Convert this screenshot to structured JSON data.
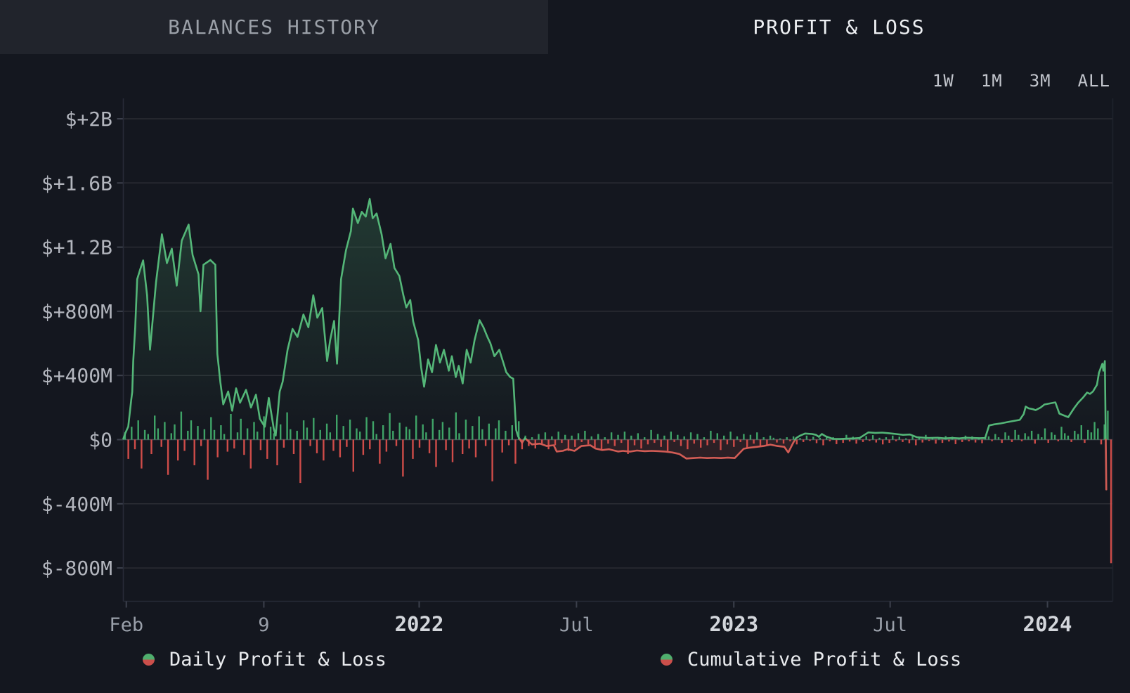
{
  "tabs": {
    "balances_label": "BALANCES HISTORY",
    "profit_loss_label": "PROFIT & LOSS",
    "active": "PROFIT & LOSS"
  },
  "range_selector": {
    "options": [
      "1W",
      "1M",
      "3M",
      "ALL"
    ]
  },
  "legend": {
    "items": [
      {
        "label": "Daily Profit & Loss"
      },
      {
        "label": "Cumulative Profit & Loss"
      }
    ]
  },
  "colors": {
    "background": "#14171f",
    "panel": "#21242c",
    "grid": "#2b2d34",
    "zero_line": "#474b55",
    "axis": "#272b37",
    "tick": "#3c404c",
    "right_border": "#1f222c",
    "line_green": "#54b678",
    "line_red": "#d25c55",
    "bar_green": "#3fa367",
    "bar_red": "#cf4c49",
    "area_green": "rgba(84,182,120,0.22)",
    "area_red": "rgba(210,92,85,0.13)",
    "text_active": "#edeff2",
    "text_inactive": "#9ba0a8",
    "text_axis": "#b3b6be",
    "text_month": "#9aa0aa",
    "text_year": "#d3d6db",
    "legend_text": "#e9ebee"
  },
  "chart_data": {
    "type": "combo",
    "title": "Profit & Loss",
    "unit": "USD millions",
    "y_axis": {
      "min": -1050,
      "max": 2250,
      "grid": true,
      "ticks": [
        {
          "label": "$+2B",
          "value": 2000
        },
        {
          "label": "$+1.6B",
          "value": 1600
        },
        {
          "label": "$+1.2B",
          "value": 1200
        },
        {
          "label": "$+800M",
          "value": 800
        },
        {
          "label": "$+400M",
          "value": 400
        },
        {
          "label": "$0",
          "value": 0
        },
        {
          "label": "$-400M",
          "value": -400
        },
        {
          "label": "$-800M",
          "value": -800
        }
      ]
    },
    "x_axis": {
      "ticks": [
        {
          "label": "Feb",
          "t": 0.003,
          "bold": false
        },
        {
          "label": "9",
          "t": 0.142,
          "bold": false
        },
        {
          "label": "2022",
          "t": 0.299,
          "bold": true
        },
        {
          "label": "Jul",
          "t": 0.458,
          "bold": false
        },
        {
          "label": "2023",
          "t": 0.617,
          "bold": true
        },
        {
          "label": "Jul",
          "t": 0.775,
          "bold": false
        },
        {
          "label": "2024",
          "t": 0.934,
          "bold": true
        }
      ]
    },
    "series": [
      {
        "name": "Daily Profit & Loss",
        "type": "bar",
        "values": [
          45,
          -120,
          80,
          -60,
          120,
          -180,
          60,
          35,
          -90,
          150,
          70,
          -45,
          110,
          -220,
          40,
          95,
          -130,
          175,
          -70,
          55,
          120,
          -160,
          85,
          -40,
          65,
          -250,
          140,
          60,
          -110,
          90,
          35,
          -75,
          160,
          -55,
          45,
          130,
          -95,
          70,
          -180,
          110,
          50,
          -65,
          145,
          -120,
          80,
          40,
          -160,
          95,
          -50,
          170,
          65,
          -90,
          55,
          -270,
          120,
          75,
          -40,
          135,
          -85,
          60,
          -130,
          100,
          45,
          -70,
          155,
          -110,
          85,
          -45,
          125,
          -200,
          70,
          50,
          -95,
          140,
          -60,
          115,
          35,
          -150,
          90,
          -75,
          165,
          55,
          -40,
          105,
          -230,
          80,
          65,
          -120,
          150,
          -50,
          95,
          45,
          -85,
          130,
          -170,
          60,
          110,
          -65,
          75,
          -140,
          170,
          40,
          -90,
          125,
          -55,
          85,
          -110,
          145,
          65,
          -40,
          100,
          -260,
          70,
          120,
          -80,
          55,
          -35,
          90,
          -150,
          115,
          -60,
          25,
          -40,
          15,
          -55,
          35,
          -25,
          45,
          -60,
          20,
          -35,
          50,
          -20,
          30,
          -70,
          25,
          -45,
          40,
          -15,
          55,
          -30,
          20,
          -50,
          35,
          -65,
          15,
          -25,
          45,
          -40,
          30,
          -20,
          50,
          -90,
          25,
          -35,
          40,
          -55,
          15,
          -30,
          60,
          -20,
          35,
          -45,
          25,
          -70,
          50,
          -15,
          30,
          -40,
          20,
          -60,
          45,
          -25,
          35,
          -50,
          15,
          -35,
          55,
          -20,
          40,
          -65,
          25,
          -30,
          50,
          -45,
          20,
          -15,
          35,
          -55,
          30,
          -25,
          45,
          -40,
          15,
          -35,
          25,
          12,
          -18,
          8,
          -25,
          15,
          -10,
          20,
          -30,
          10,
          -15,
          25,
          -8,
          18,
          -22,
          12,
          -35,
          20,
          -10,
          15,
          -28,
          8,
          -20,
          30,
          -12,
          18,
          -25,
          10,
          -15,
          22,
          -8,
          28,
          -18,
          12,
          -30,
          15,
          -20,
          25,
          -10,
          18,
          -15,
          8,
          -22,
          20,
          -35,
          12,
          -18,
          30,
          -8,
          15,
          -25,
          10,
          -20,
          22,
          -12,
          18,
          -28,
          8,
          -15,
          25,
          -10,
          20,
          -18,
          12,
          -22,
          15,
          20,
          -10,
          35,
          15,
          -20,
          45,
          25,
          -15,
          60,
          30,
          -10,
          40,
          20,
          55,
          -25,
          35,
          15,
          70,
          -20,
          45,
          30,
          -10,
          80,
          40,
          25,
          -15,
          55,
          35,
          90,
          -20,
          60,
          45,
          110,
          70,
          -30,
          95,
          180,
          -770
        ]
      },
      {
        "name": "Cumulative Profit & Loss",
        "type": "line",
        "points": [
          [
            0,
            5
          ],
          [
            0.002,
            40
          ],
          [
            0.005,
            81
          ],
          [
            0.008,
            250
          ],
          [
            0.009,
            298
          ],
          [
            0.01,
            490
          ],
          [
            0.012,
            700
          ],
          [
            0.014,
            1000
          ],
          [
            0.017,
            1060
          ],
          [
            0.02,
            1117
          ],
          [
            0.024,
            900
          ],
          [
            0.027,
            561
          ],
          [
            0.033,
            980
          ],
          [
            0.039,
            1280
          ],
          [
            0.044,
            1100
          ],
          [
            0.049,
            1190
          ],
          [
            0.054,
            960
          ],
          [
            0.059,
            1240
          ],
          [
            0.066,
            1340
          ],
          [
            0.07,
            1150
          ],
          [
            0.076,
            1030
          ],
          [
            0.078,
            800
          ],
          [
            0.081,
            1090
          ],
          [
            0.088,
            1120
          ],
          [
            0.093,
            1090
          ],
          [
            0.095,
            534
          ],
          [
            0.098,
            360
          ],
          [
            0.101,
            220
          ],
          [
            0.106,
            300
          ],
          [
            0.11,
            180
          ],
          [
            0.114,
            320
          ],
          [
            0.118,
            230
          ],
          [
            0.124,
            310
          ],
          [
            0.129,
            200
          ],
          [
            0.134,
            280
          ],
          [
            0.138,
            130
          ],
          [
            0.143,
            80
          ],
          [
            0.147,
            260
          ],
          [
            0.152,
            70
          ],
          [
            0.154,
            25
          ],
          [
            0.158,
            300
          ],
          [
            0.161,
            360
          ],
          [
            0.166,
            560
          ],
          [
            0.171,
            690
          ],
          [
            0.176,
            640
          ],
          [
            0.182,
            780
          ],
          [
            0.187,
            700
          ],
          [
            0.192,
            900
          ],
          [
            0.196,
            760
          ],
          [
            0.201,
            820
          ],
          [
            0.206,
            490
          ],
          [
            0.209,
            620
          ],
          [
            0.213,
            740
          ],
          [
            0.216,
            473
          ],
          [
            0.22,
            1000
          ],
          [
            0.225,
            1180
          ],
          [
            0.23,
            1300
          ],
          [
            0.232,
            1440
          ],
          [
            0.237,
            1350
          ],
          [
            0.241,
            1420
          ],
          [
            0.245,
            1390
          ],
          [
            0.249,
            1500
          ],
          [
            0.252,
            1380
          ],
          [
            0.256,
            1410
          ],
          [
            0.261,
            1280
          ],
          [
            0.265,
            1130
          ],
          [
            0.27,
            1220
          ],
          [
            0.274,
            1070
          ],
          [
            0.279,
            1020
          ],
          [
            0.283,
            900
          ],
          [
            0.286,
            824
          ],
          [
            0.29,
            870
          ],
          [
            0.293,
            736
          ],
          [
            0.298,
            620
          ],
          [
            0.301,
            450
          ],
          [
            0.304,
            330
          ],
          [
            0.308,
            500
          ],
          [
            0.312,
            420
          ],
          [
            0.316,
            590
          ],
          [
            0.32,
            480
          ],
          [
            0.324,
            560
          ],
          [
            0.329,
            430
          ],
          [
            0.332,
            520
          ],
          [
            0.336,
            390
          ],
          [
            0.339,
            460
          ],
          [
            0.343,
            350
          ],
          [
            0.347,
            560
          ],
          [
            0.351,
            480
          ],
          [
            0.355,
            620
          ],
          [
            0.36,
            745
          ],
          [
            0.364,
            700
          ],
          [
            0.368,
            640
          ],
          [
            0.371,
            600
          ],
          [
            0.375,
            520
          ],
          [
            0.38,
            560
          ],
          [
            0.384,
            480
          ],
          [
            0.387,
            420
          ],
          [
            0.391,
            390
          ],
          [
            0.394,
            380
          ],
          [
            0.397,
            60
          ],
          [
            0.399,
            20
          ],
          [
            0.403,
            -20
          ],
          [
            0.406,
            10
          ],
          [
            0.41,
            -15
          ],
          [
            0.413,
            -30
          ],
          [
            0.421,
            -25
          ],
          [
            0.428,
            -40
          ],
          [
            0.435,
            -35
          ],
          [
            0.438,
            -74
          ],
          [
            0.444,
            -70
          ],
          [
            0.449,
            -60
          ],
          [
            0.456,
            -70
          ],
          [
            0.463,
            -40
          ],
          [
            0.472,
            -35
          ],
          [
            0.477,
            -55
          ],
          [
            0.484,
            -65
          ],
          [
            0.491,
            -60
          ],
          [
            0.5,
            -74
          ],
          [
            0.505,
            -70
          ],
          [
            0.512,
            -75
          ],
          [
            0.519,
            -68
          ],
          [
            0.527,
            -72
          ],
          [
            0.534,
            -70
          ],
          [
            0.541,
            -72
          ],
          [
            0.548,
            -75
          ],
          [
            0.555,
            -80
          ],
          [
            0.562,
            -90
          ],
          [
            0.569,
            -118
          ],
          [
            0.576,
            -115
          ],
          [
            0.583,
            -112
          ],
          [
            0.59,
            -115
          ],
          [
            0.597,
            -113
          ],
          [
            0.604,
            -115
          ],
          [
            0.611,
            -112
          ],
          [
            0.618,
            -115
          ],
          [
            0.627,
            -57
          ],
          [
            0.633,
            -50
          ],
          [
            0.64,
            -45
          ],
          [
            0.647,
            -40
          ],
          [
            0.654,
            -31
          ],
          [
            0.661,
            -40
          ],
          [
            0.668,
            -45
          ],
          [
            0.672,
            -80
          ],
          [
            0.677,
            -20
          ],
          [
            0.68,
            10
          ],
          [
            0.684,
            25
          ],
          [
            0.689,
            38
          ],
          [
            0.696,
            35
          ],
          [
            0.7,
            30
          ],
          [
            0.703,
            17
          ],
          [
            0.706,
            35
          ],
          [
            0.71,
            20
          ],
          [
            0.717,
            5
          ],
          [
            0.724,
            4
          ],
          [
            0.732,
            6
          ],
          [
            0.739,
            8
          ],
          [
            0.744,
            10
          ],
          [
            0.753,
            45
          ],
          [
            0.76,
            42
          ],
          [
            0.767,
            44
          ],
          [
            0.774,
            40
          ],
          [
            0.781,
            35
          ],
          [
            0.788,
            30
          ],
          [
            0.795,
            32
          ],
          [
            0.802,
            15
          ],
          [
            0.809,
            12
          ],
          [
            0.814,
            10
          ],
          [
            0.823,
            12
          ],
          [
            0.83,
            8
          ],
          [
            0.838,
            10
          ],
          [
            0.845,
            8
          ],
          [
            0.852,
            12
          ],
          [
            0.859,
            10
          ],
          [
            0.866,
            9
          ],
          [
            0.871,
            10
          ],
          [
            0.875,
            88
          ],
          [
            0.88,
            95
          ],
          [
            0.887,
            101
          ],
          [
            0.894,
            110
          ],
          [
            0.901,
            118
          ],
          [
            0.906,
            123
          ],
          [
            0.91,
            160
          ],
          [
            0.912,
            206
          ],
          [
            0.915,
            195
          ],
          [
            0.919,
            190
          ],
          [
            0.922,
            184
          ],
          [
            0.927,
            200
          ],
          [
            0.931,
            219
          ],
          [
            0.936,
            225
          ],
          [
            0.942,
            232
          ],
          [
            0.946,
            162
          ],
          [
            0.951,
            150
          ],
          [
            0.955,
            140
          ],
          [
            0.961,
            197
          ],
          [
            0.965,
            230
          ],
          [
            0.97,
            263
          ],
          [
            0.974,
            293
          ],
          [
            0.977,
            285
          ],
          [
            0.98,
            300
          ],
          [
            0.984,
            342
          ],
          [
            0.986,
            416
          ],
          [
            0.988,
            450
          ],
          [
            0.9895,
            473
          ],
          [
            0.9905,
            430
          ],
          [
            0.992,
            490
          ],
          [
            0.9935,
            -310
          ]
        ]
      }
    ]
  }
}
